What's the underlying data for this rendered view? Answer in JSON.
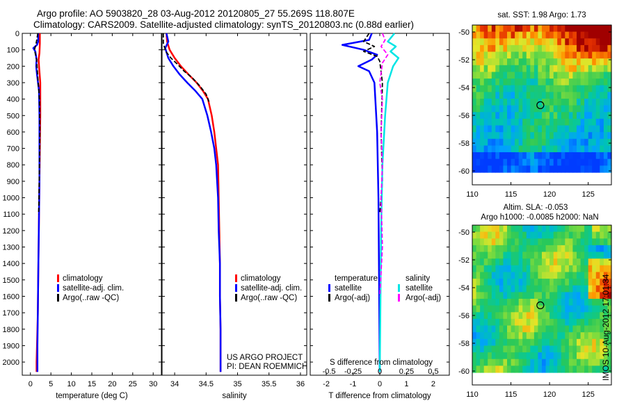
{
  "header": {
    "title_line1": "Argo profile: AO 5903820_28 03-Aug-2012 20120805_27 55.269S 118.807E",
    "title_line2": "Climatology: CARS2009. Satellite-adjusted climatology: synTS_20120803.nc (0.88d earlier)"
  },
  "colors": {
    "climatology": "#ff0000",
    "satellite": "#0000ff",
    "argo": "#000000",
    "satellite_salinity": "#00e5e5",
    "argo_adj_salinity": "#ff00ff"
  },
  "depth_ticks": [
    0,
    100,
    200,
    300,
    400,
    500,
    600,
    700,
    800,
    900,
    1000,
    1100,
    1200,
    1300,
    1400,
    1500,
    1600,
    1700,
    1800,
    1900,
    2000
  ],
  "chart_data": [
    {
      "type": "line",
      "panel": "temperature",
      "xlabel": "temperature (deg C)",
      "ylabel": "",
      "xlim": [
        -2,
        32
      ],
      "ylim": [
        2080,
        0
      ],
      "xticks": [
        0,
        5,
        10,
        15,
        20,
        25,
        30
      ],
      "legend": [
        "climatology",
        "satellite-adj. clim.",
        "Argo(..raw -QC)"
      ],
      "legend_position": "lower-center",
      "series": [
        {
          "name": "climatology",
          "color": "#ff0000",
          "width": 2.5,
          "dash": "",
          "x": [
            2.3,
            2.3,
            2.2,
            2.0,
            2.1,
            2.4,
            2.4,
            2.4,
            2.3,
            2.2,
            2.1,
            2.0,
            1.9,
            1.8,
            1.6,
            1.5,
            1.5
          ],
          "y": [
            0,
            60,
            120,
            160,
            200,
            300,
            400,
            500,
            700,
            900,
            1100,
            1300,
            1500,
            1700,
            1900,
            2000,
            2060
          ]
        },
        {
          "name": "satellite-adj. clim.",
          "color": "#0000ff",
          "width": 2.5,
          "dash": "",
          "x": [
            1.9,
            1.9,
            1.6,
            0.7,
            1.2,
            1.5,
            1.4,
            1.6,
            2.1,
            2.2,
            2.2,
            2.2,
            2.1,
            2.0,
            1.9,
            1.8,
            1.7,
            1.7
          ],
          "y": [
            0,
            50,
            70,
            90,
            110,
            160,
            200,
            250,
            350,
            500,
            700,
            900,
            1100,
            1300,
            1500,
            1700,
            1900,
            2060
          ]
        },
        {
          "name": "Argo(..raw -QC)",
          "color": "#000000",
          "width": 1.8,
          "dash": "6,3",
          "x": [
            1.8,
            1.4,
            1.0,
            1.5,
            1.6,
            1.9,
            2.2,
            2.3,
            2.2,
            2.1,
            2.0
          ],
          "y": [
            0,
            60,
            100,
            160,
            200,
            300,
            400,
            600,
            800,
            1000,
            1100
          ]
        }
      ]
    },
    {
      "type": "line",
      "panel": "salinity",
      "xlabel": "salinity",
      "xlim": [
        33.8,
        36.1
      ],
      "ylim": [
        2080,
        0
      ],
      "xticks": [
        34,
        34.5,
        35,
        35.5,
        36
      ],
      "legend": [
        "climatology",
        "satellite-adj. clim.",
        "Argo(..raw -QC)"
      ],
      "legend_position": "lower-right",
      "annotation_lines": [
        "US ARGO PROJECT",
        "PI: DEAN ROEMMICH"
      ],
      "series": [
        {
          "name": "climatology",
          "color": "#ff0000",
          "width": 2.5,
          "dash": "",
          "x": [
            33.87,
            33.88,
            33.92,
            34.0,
            34.1,
            34.22,
            34.35,
            34.45,
            34.53,
            34.59,
            34.63,
            34.66,
            34.69,
            34.7,
            34.71,
            34.72,
            34.72,
            34.73,
            34.73
          ],
          "y": [
            0,
            50,
            100,
            150,
            200,
            250,
            300,
            350,
            400,
            500,
            600,
            700,
            800,
            1000,
            1200,
            1400,
            1600,
            1800,
            2060
          ]
        },
        {
          "name": "satellite-adj. clim.",
          "color": "#0000ff",
          "width": 2.5,
          "dash": "",
          "x": [
            33.87,
            33.9,
            33.85,
            33.9,
            33.98,
            34.08,
            34.2,
            34.33,
            34.44,
            34.52,
            34.58,
            34.63,
            34.66,
            34.69,
            34.7,
            34.72,
            34.72,
            34.73,
            34.73
          ],
          "y": [
            0,
            50,
            90,
            150,
            200,
            250,
            300,
            350,
            400,
            500,
            600,
            700,
            800,
            1000,
            1200,
            1400,
            1600,
            1800,
            2060
          ]
        },
        {
          "name": "Argo(..raw -QC)",
          "color": "#000000",
          "width": 1.8,
          "dash": "6,3",
          "x": [
            33.82,
            33.82,
            33.86,
            33.94,
            34.05,
            34.15,
            34.28,
            34.4,
            34.5,
            34.55
          ],
          "y": [
            0,
            60,
            110,
            150,
            190,
            230,
            270,
            320,
            370,
            420
          ]
        }
      ]
    },
    {
      "type": "line",
      "panel": "difference",
      "xlabel": "T difference from climatology",
      "xlabel_top": "S difference from climatology",
      "xlim": [
        -2.6,
        2.6
      ],
      "ylim": [
        2080,
        0
      ],
      "xticks": [
        -2,
        -1,
        0,
        1,
        2
      ],
      "xticks_top": [
        "-0.5",
        "-0.25",
        "0",
        "0.25",
        "0.5"
      ],
      "legend_columns": [
        {
          "header": "temperature",
          "entries": [
            "satellite",
            "Argo(-adj)"
          ]
        },
        {
          "header": "salinity",
          "entries": [
            "satellite",
            "Argo(-adj)"
          ]
        }
      ],
      "series": [
        {
          "name": "satellite",
          "group": "temperature",
          "color": "#0000ff",
          "width": 2.5,
          "dash": "",
          "x": [
            -0.3,
            -0.4,
            -1.4,
            -0.6,
            -0.1,
            -0.3,
            -0.8,
            -0.4,
            -0.2,
            -0.1,
            -0.05,
            0
          ],
          "y": [
            0,
            40,
            70,
            100,
            130,
            160,
            200,
            230,
            300,
            600,
            1000,
            2060
          ]
        },
        {
          "name": "Argo(-adj)",
          "group": "temperature",
          "color": "#000000",
          "width": 1.8,
          "dash": "6,3",
          "x": [
            -0.4,
            -0.6,
            -0.2,
            -0.6,
            -0.1,
            0,
            0.1,
            0.05,
            0.1,
            0
          ],
          "y": [
            0,
            50,
            80,
            110,
            140,
            170,
            300,
            600,
            900,
            1100
          ]
        },
        {
          "name": "satellite",
          "group": "salinity",
          "color": "#00e5e5",
          "width": 2.5,
          "dash": "",
          "x": [
            0.55,
            0.3,
            0.6,
            0.4,
            0.7,
            0.5,
            0.3,
            0.2,
            0.1,
            0.05,
            0
          ],
          "y": [
            0,
            50,
            80,
            110,
            150,
            200,
            300,
            500,
            800,
            1200,
            2060
          ]
        },
        {
          "name": "Argo(-adj)",
          "group": "salinity",
          "color": "#ff00ff",
          "width": 1.8,
          "dash": "6,3",
          "x": [
            0.1,
            0.2,
            0.05,
            0.3,
            0.1,
            0.0,
            0.1,
            0.05,
            0.1,
            0.05,
            0.1,
            0
          ],
          "y": [
            0,
            40,
            80,
            130,
            180,
            300,
            400,
            600,
            800,
            1000,
            1300,
            1600
          ]
        }
      ]
    },
    {
      "type": "heatmap",
      "panel": "sst_map",
      "title": "sat. SST: 1.98 Argo: 1.73",
      "xlim": [
        110,
        128
      ],
      "ylim": [
        -61,
        -49.5
      ],
      "xticks": [
        110,
        115,
        120,
        125
      ],
      "yticks": [
        -50,
        -52,
        -54,
        -56,
        -58,
        -60
      ],
      "marker": {
        "lon": 118.807,
        "lat": -55.269
      }
    },
    {
      "type": "heatmap",
      "panel": "sla_map",
      "title_lines": [
        "Altim. SLA: -0.053",
        "Argo h1000: -0.0085 h2000: NaN"
      ],
      "xlim": [
        110,
        128
      ],
      "ylim": [
        -61,
        -49.5
      ],
      "xticks": [
        110,
        115,
        120,
        125
      ],
      "yticks": [
        -50,
        -52,
        -54,
        -56,
        -58,
        -60
      ],
      "marker": {
        "lon": 118.807,
        "lat": -55.269
      }
    }
  ],
  "stamp": "IMOS 10-Aug-2012 17:01:34"
}
